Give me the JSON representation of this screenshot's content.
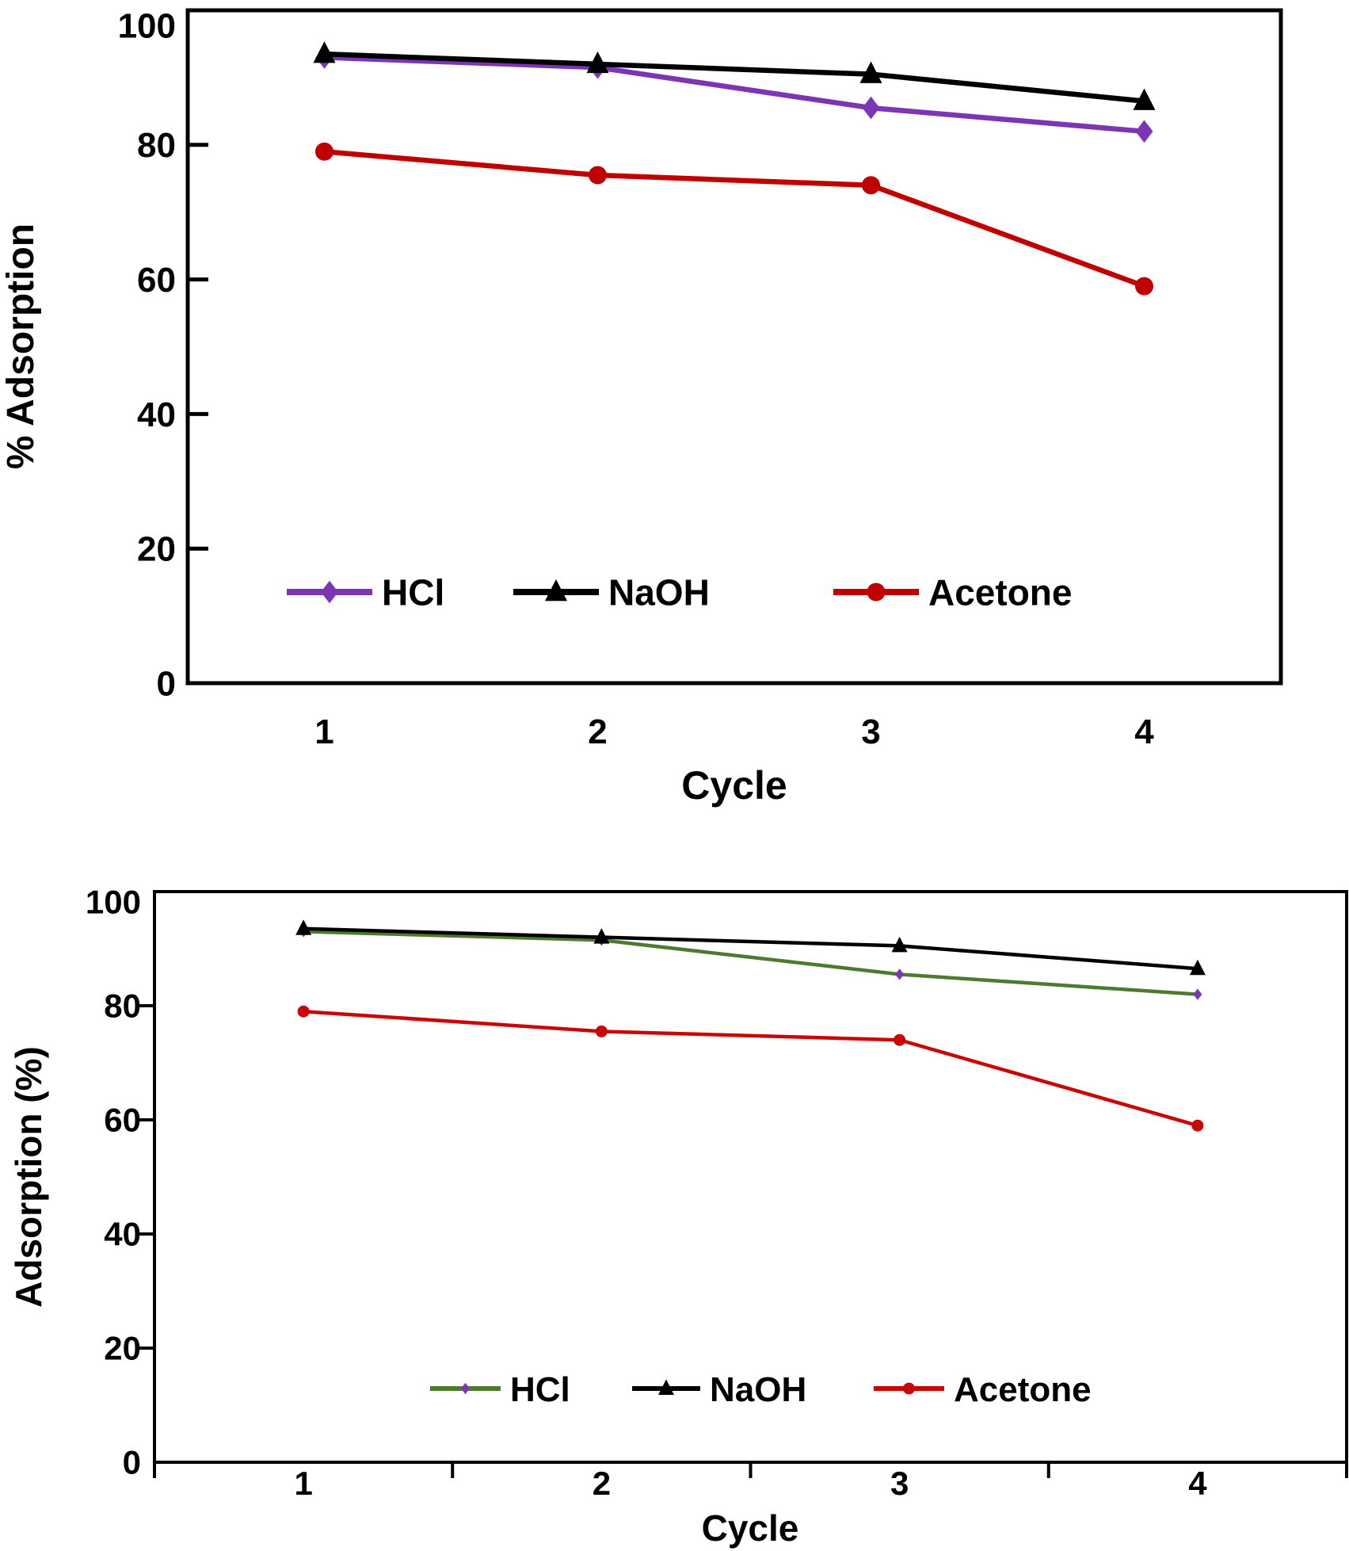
{
  "page": {
    "background": "#ffffff"
  },
  "chart_data": [
    {
      "id": "top-chart",
      "type": "line",
      "title": "",
      "xlabel": "Cycle",
      "ylabel": "% Adsorption",
      "categories": [
        1,
        2,
        3,
        4
      ],
      "x_tick_labels": [
        "1",
        "2",
        "3",
        "4"
      ],
      "y_tick_labels": [
        "0",
        "20",
        "40",
        "60",
        "80",
        "100"
      ],
      "y_ticks": [
        0,
        20,
        40,
        60,
        80,
        100
      ],
      "ylim": [
        0,
        100
      ],
      "grid": false,
      "legend_position": "inside-bottom",
      "axis_color": "#000000",
      "series": [
        {
          "name": "HCl",
          "values": [
            93,
            91.5,
            85.5,
            82
          ],
          "color": "#7B35B5",
          "marker": "diamond",
          "marker_color": "#7B35B5"
        },
        {
          "name": "NaOH",
          "values": [
            93.5,
            92,
            90.5,
            86.5
          ],
          "color": "#000000",
          "marker": "triangle",
          "marker_color": "#000000"
        },
        {
          "name": "Acetone",
          "values": [
            79,
            75.5,
            74,
            59
          ],
          "color": "#C00000",
          "marker": "circle",
          "marker_color": "#C00000"
        }
      ]
    },
    {
      "id": "bottom-chart",
      "type": "line",
      "title": "",
      "xlabel": "Cycle",
      "ylabel": "Adsorption (%)",
      "categories": [
        1,
        2,
        3,
        4
      ],
      "x_tick_labels": [
        "1",
        "2",
        "3",
        "4"
      ],
      "y_tick_labels": [
        "0",
        "20",
        "40",
        "60",
        "80",
        "100"
      ],
      "y_ticks": [
        0,
        20,
        40,
        60,
        80,
        100
      ],
      "ylim": [
        0,
        100
      ],
      "grid": false,
      "legend_position": "inside-bottom",
      "axis_color": "#000000",
      "series": [
        {
          "name": "HCl",
          "values": [
            93,
            91.5,
            85.5,
            82
          ],
          "color": "#4E7A2F",
          "marker": "diamond",
          "marker_color": "#7B35B5"
        },
        {
          "name": "NaOH",
          "values": [
            93.5,
            92,
            90.5,
            86.5
          ],
          "color": "#000000",
          "marker": "triangle",
          "marker_color": "#000000"
        },
        {
          "name": "Acetone",
          "values": [
            79,
            75.5,
            74,
            59
          ],
          "color": "#C90707",
          "marker": "circle",
          "marker_color": "#C90707"
        }
      ]
    }
  ]
}
